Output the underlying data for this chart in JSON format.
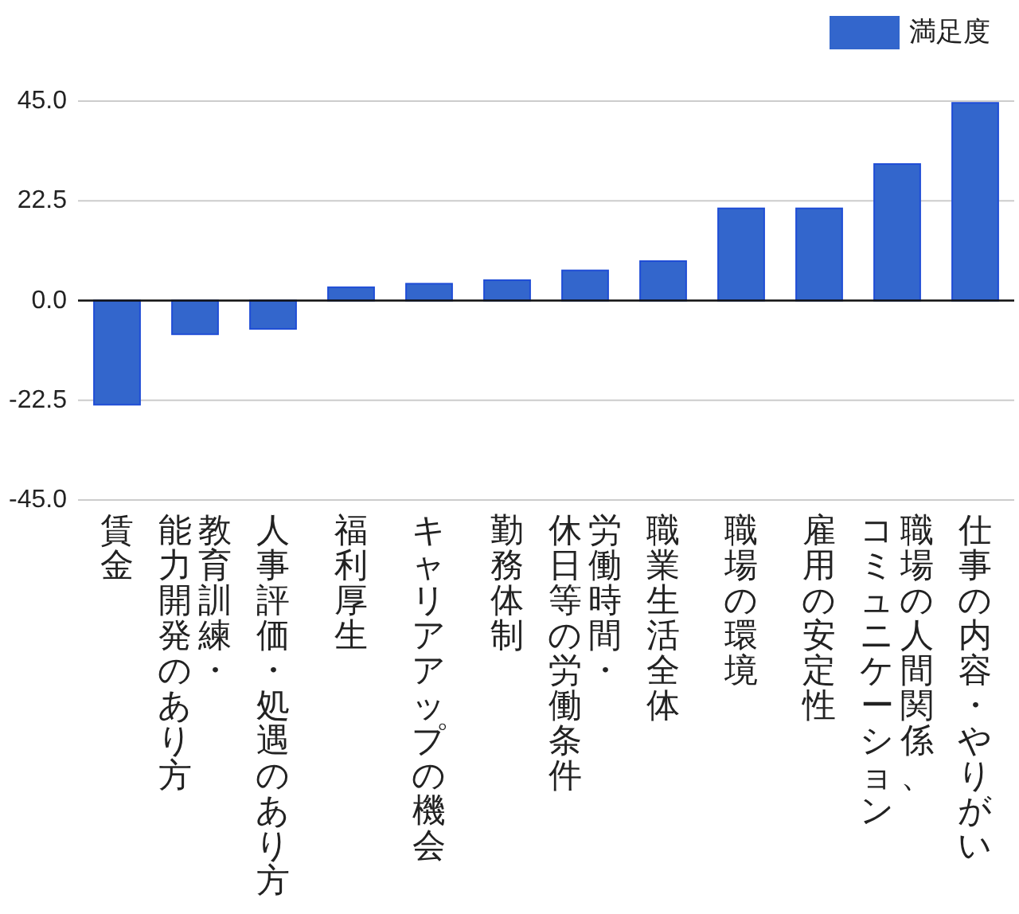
{
  "chart_data": {
    "type": "bar",
    "categories": [
      "賃金",
      "教育訓練・能力開発のあり方",
      "人事評価・処遇のあり方",
      "福利厚生",
      "キャリアアップの機会",
      "勤務体制",
      "労働時間・休日等の労働条件",
      "職業生活全体",
      "職場の環境",
      "雇用の安定性",
      "職場の人間関係、コミュニケーション",
      "仕事の内容・やりがい"
    ],
    "series": [
      {
        "name": "満足度",
        "color": "#3366cc",
        "values": [
          -23.5,
          -7.6,
          -6.4,
          3.0,
          3.8,
          4.6,
          6.8,
          8.9,
          20.8,
          20.8,
          30.8,
          44.6
        ]
      }
    ],
    "ylim": [
      -45,
      45
    ],
    "yticks": [
      {
        "value": 45,
        "label": "45.0"
      },
      22.5,
      {
        "value": 0,
        "label": "0.0"
      },
      -22.5,
      {
        "value": -45,
        "label": "-45.0"
      }
    ],
    "grid": "y",
    "legend": "top right"
  }
}
